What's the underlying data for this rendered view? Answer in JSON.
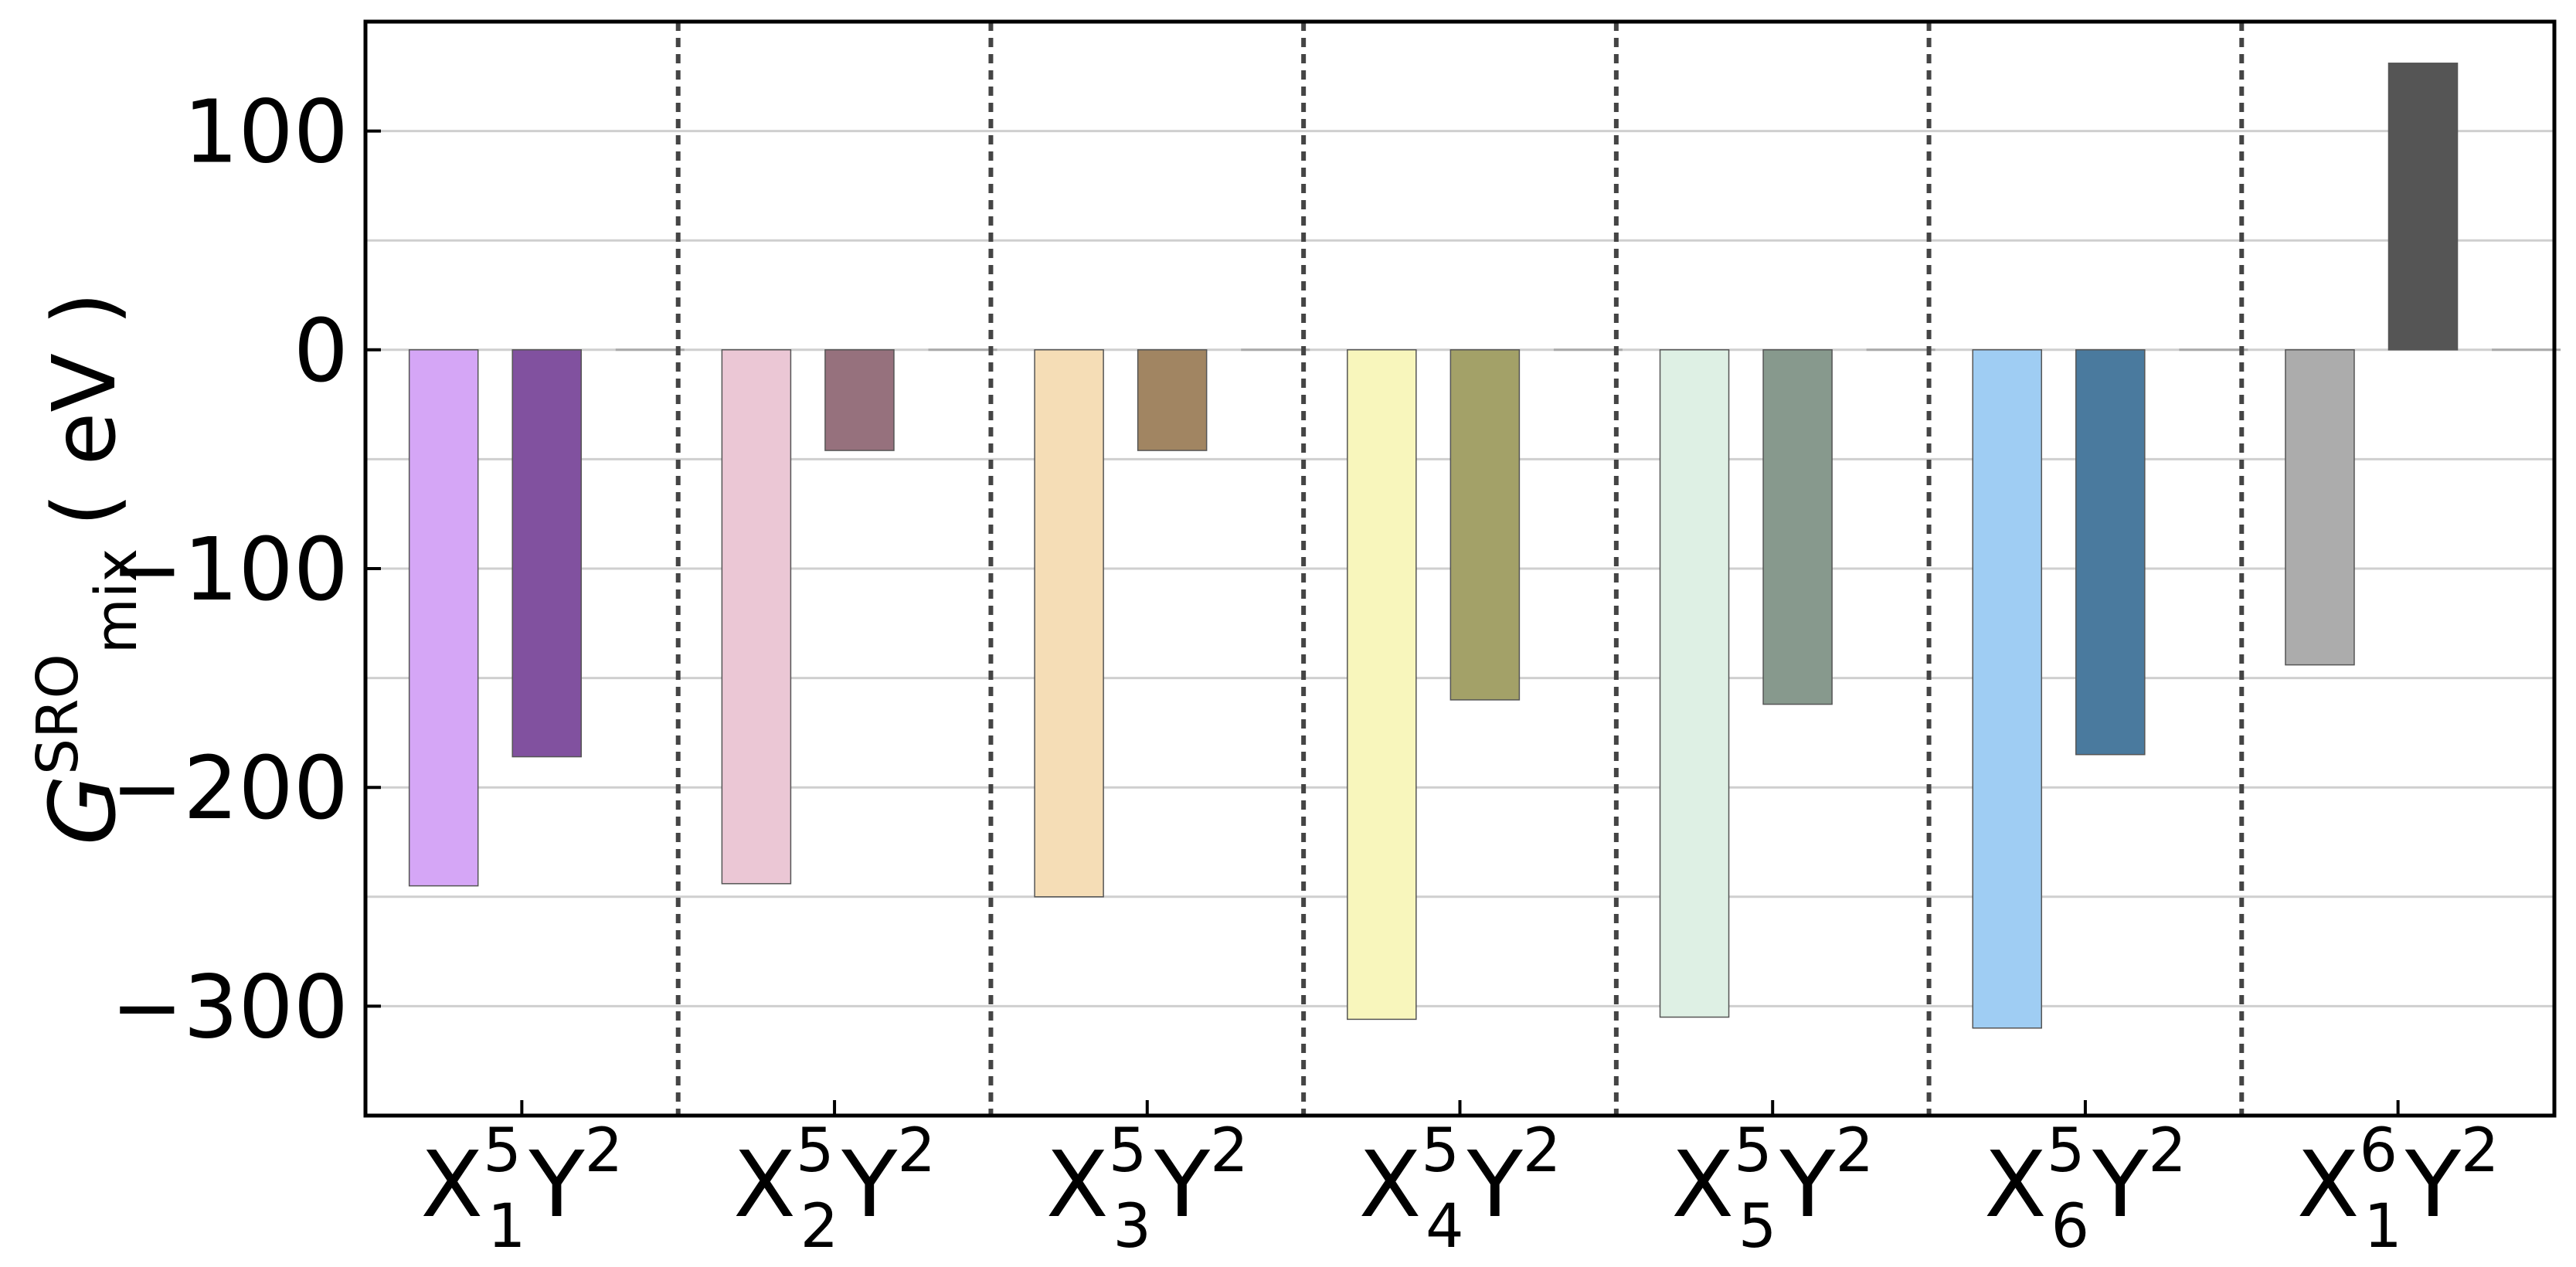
{
  "chart_data": {
    "type": "bar",
    "ylabel": {
      "symbol": "G",
      "superscript": "SRO",
      "subscript": "mix",
      "unit": "( eV )"
    },
    "ylim": [
      -350,
      150
    ],
    "yticks": [
      {
        "value": 100,
        "label": "100"
      },
      {
        "value": 0,
        "label": "0"
      },
      {
        "value": -100,
        "label": "−100"
      },
      {
        "value": -200,
        "label": "−200"
      },
      {
        "value": -300,
        "label": "−300"
      }
    ],
    "minor_gridlines": [
      50,
      -50,
      -150,
      -250
    ],
    "grid": true,
    "group_separators": "dotted",
    "groups": [
      {
        "x": "X",
        "sub": "1",
        "xsup": "5",
        "y": "Y",
        "ysup": "2",
        "bars": [
          {
            "value": -245,
            "color": "#d5a6f6"
          },
          {
            "value": -186,
            "color": "#81519f"
          }
        ]
      },
      {
        "x": "X",
        "sub": "2",
        "xsup": "5",
        "y": "Y",
        "ysup": "2",
        "bars": [
          {
            "value": -244,
            "color": "#ebc7d5"
          },
          {
            "value": -46,
            "color": "#96717d"
          }
        ]
      },
      {
        "x": "X",
        "sub": "3",
        "xsup": "5",
        "y": "Y",
        "ysup": "2",
        "bars": [
          {
            "value": -250,
            "color": "#f5ddb6"
          },
          {
            "value": -46,
            "color": "#a18562"
          }
        ]
      },
      {
        "x": "X",
        "sub": "4",
        "xsup": "5",
        "y": "Y",
        "ysup": "2",
        "bars": [
          {
            "value": -306,
            "color": "#f8f6bc"
          },
          {
            "value": -160,
            "color": "#a3a168"
          }
        ]
      },
      {
        "x": "X",
        "sub": "5",
        "xsup": "5",
        "y": "Y",
        "ysup": "2",
        "bars": [
          {
            "value": -305,
            "color": "#def0e4"
          },
          {
            "value": -162,
            "color": "#87998d"
          }
        ]
      },
      {
        "x": "X",
        "sub": "6",
        "xsup": "5",
        "y": "Y",
        "ysup": "2",
        "bars": [
          {
            "value": -310,
            "color": "#9fcdf3"
          },
          {
            "value": -185,
            "color": "#4a7a9e"
          }
        ]
      },
      {
        "x": "X",
        "sub": "1",
        "xsup": "6",
        "y": "Y",
        "ysup": "2",
        "bars": [
          {
            "value": -144,
            "color": "#acacac"
          },
          {
            "value": 131,
            "color": "#555555"
          }
        ]
      }
    ]
  }
}
